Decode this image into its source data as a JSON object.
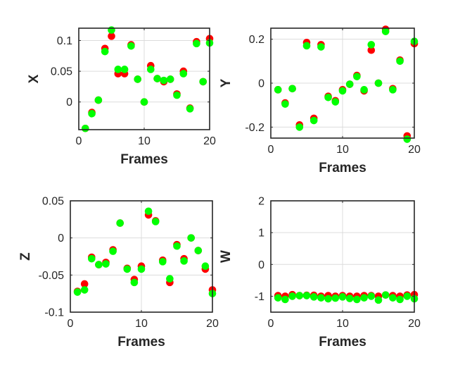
{
  "chart_data": [
    {
      "type": "scatter",
      "xlabel": "Frames",
      "ylabel": "X",
      "xlim": [
        0,
        20
      ],
      "ylim": [
        -0.045,
        0.12
      ],
      "xticks": [
        0,
        10,
        20
      ],
      "xtick_labels": [
        "0",
        "10",
        "20"
      ],
      "yticks": [
        0,
        0.05,
        0.1
      ],
      "ytick_labels": [
        "0",
        "0.05",
        "0.1"
      ],
      "grid": true,
      "series": [
        {
          "color": "#ff0000",
          "x": [
            1,
            2,
            3,
            4,
            5,
            6,
            7,
            8,
            9,
            10,
            11,
            12,
            13,
            14,
            15,
            16,
            17,
            18,
            19,
            20
          ],
          "y": [
            -0.043,
            -0.017,
            0.003,
            0.087,
            0.107,
            0.046,
            0.046,
            0.093,
            0.037,
            0.0,
            0.059,
            0.038,
            0.033,
            0.037,
            0.013,
            0.05,
            -0.01,
            0.098,
            0.033,
            0.103
          ]
        },
        {
          "color": "#00ff00",
          "x": [
            1,
            2,
            3,
            4,
            5,
            6,
            7,
            8,
            9,
            10,
            11,
            12,
            13,
            14,
            15,
            16,
            17,
            18,
            19,
            20
          ],
          "y": [
            -0.043,
            -0.019,
            0.003,
            0.082,
            0.117,
            0.053,
            0.053,
            0.091,
            0.037,
            0.0,
            0.053,
            0.038,
            0.035,
            0.037,
            0.011,
            0.046,
            -0.011,
            0.095,
            0.033,
            0.096
          ]
        }
      ]
    },
    {
      "type": "scatter",
      "xlabel": "Frames",
      "ylabel": "Y",
      "xlim": [
        0,
        20
      ],
      "ylim": [
        -0.25,
        0.25
      ],
      "xticks": [
        0,
        10,
        20
      ],
      "xtick_labels": [
        "0",
        "10",
        "20"
      ],
      "yticks": [
        -0.2,
        0,
        0.2
      ],
      "ytick_labels": [
        "-0.2",
        "0",
        "0.2"
      ],
      "grid": true,
      "series": [
        {
          "color": "#ff0000",
          "x": [
            1,
            2,
            3,
            4,
            5,
            6,
            7,
            8,
            9,
            10,
            11,
            12,
            13,
            14,
            15,
            16,
            17,
            18,
            19,
            20
          ],
          "y": [
            -0.03,
            -0.09,
            -0.025,
            -0.19,
            0.185,
            -0.16,
            0.175,
            -0.06,
            -0.08,
            -0.03,
            -0.005,
            0.035,
            -0.035,
            0.15,
            0.0,
            0.245,
            -0.025,
            0.105,
            -0.24,
            0.18
          ]
        },
        {
          "color": "#00ff00",
          "x": [
            1,
            2,
            3,
            4,
            5,
            6,
            7,
            8,
            9,
            10,
            11,
            12,
            13,
            14,
            15,
            16,
            17,
            18,
            19,
            20
          ],
          "y": [
            -0.03,
            -0.095,
            -0.025,
            -0.2,
            0.17,
            -0.17,
            0.165,
            -0.065,
            -0.085,
            -0.035,
            -0.005,
            0.03,
            -0.03,
            0.175,
            0.0,
            0.235,
            -0.03,
            0.1,
            -0.255,
            0.19
          ]
        }
      ]
    },
    {
      "type": "scatter",
      "xlabel": "Frames",
      "ylabel": "Z",
      "xlim": [
        0,
        20
      ],
      "ylim": [
        -0.1,
        0.05
      ],
      "xticks": [
        0,
        10,
        20
      ],
      "xtick_labels": [
        "0",
        "10",
        "20"
      ],
      "yticks": [
        -0.1,
        -0.05,
        0,
        0.05
      ],
      "ytick_labels": [
        "-0.1",
        "-0.05",
        "0",
        "0.05"
      ],
      "grid": true,
      "series": [
        {
          "color": "#ff0000",
          "x": [
            1,
            2,
            3,
            4,
            5,
            6,
            7,
            8,
            9,
            10,
            11,
            12,
            13,
            14,
            15,
            16,
            17,
            18,
            19,
            20
          ],
          "y": [
            -0.072,
            -0.062,
            -0.026,
            -0.036,
            -0.033,
            -0.016,
            0.02,
            -0.041,
            -0.056,
            -0.038,
            0.031,
            0.023,
            -0.03,
            -0.06,
            -0.009,
            -0.028,
            0.0,
            -0.017,
            -0.042,
            -0.07
          ]
        },
        {
          "color": "#00ff00",
          "x": [
            1,
            2,
            3,
            4,
            5,
            6,
            7,
            8,
            9,
            10,
            11,
            12,
            13,
            14,
            15,
            16,
            17,
            18,
            19,
            20
          ],
          "y": [
            -0.073,
            -0.07,
            -0.028,
            -0.036,
            -0.035,
            -0.018,
            0.02,
            -0.042,
            -0.06,
            -0.042,
            0.036,
            0.022,
            -0.032,
            -0.055,
            -0.011,
            -0.031,
            0.0,
            -0.017,
            -0.038,
            -0.075
          ]
        }
      ]
    },
    {
      "type": "scatter",
      "xlabel": "Frames",
      "ylabel": "W",
      "xlim": [
        0,
        20
      ],
      "ylim": [
        -1.5,
        2
      ],
      "xticks": [
        0,
        10,
        20
      ],
      "xtick_labels": [
        "0",
        "10",
        "20"
      ],
      "yticks": [
        -1,
        0,
        1,
        2
      ],
      "ytick_labels": [
        "-1",
        "0",
        "1",
        "2"
      ],
      "grid": true,
      "series": [
        {
          "color": "#ff0000",
          "x": [
            1,
            2,
            3,
            4,
            5,
            6,
            7,
            8,
            9,
            10,
            11,
            12,
            13,
            14,
            15,
            16,
            17,
            18,
            19,
            20
          ],
          "y": [
            -0.98,
            -1.0,
            -0.95,
            -0.98,
            -0.97,
            -0.97,
            -1.0,
            -0.98,
            -1.0,
            -0.98,
            -1.0,
            -1.0,
            -0.98,
            -0.98,
            -1.0,
            -0.96,
            -0.98,
            -1.0,
            -0.96,
            -0.95
          ]
        },
        {
          "color": "#00ff00",
          "x": [
            1,
            2,
            3,
            4,
            5,
            6,
            7,
            8,
            9,
            10,
            11,
            12,
            13,
            14,
            15,
            16,
            17,
            18,
            19,
            20
          ],
          "y": [
            -1.05,
            -1.1,
            -1.0,
            -0.98,
            -0.98,
            -1.02,
            -1.05,
            -1.08,
            -1.06,
            -1.02,
            -1.07,
            -1.1,
            -1.05,
            -1.0,
            -1.12,
            -0.96,
            -1.05,
            -1.1,
            -1.0,
            -1.08
          ]
        }
      ]
    }
  ]
}
